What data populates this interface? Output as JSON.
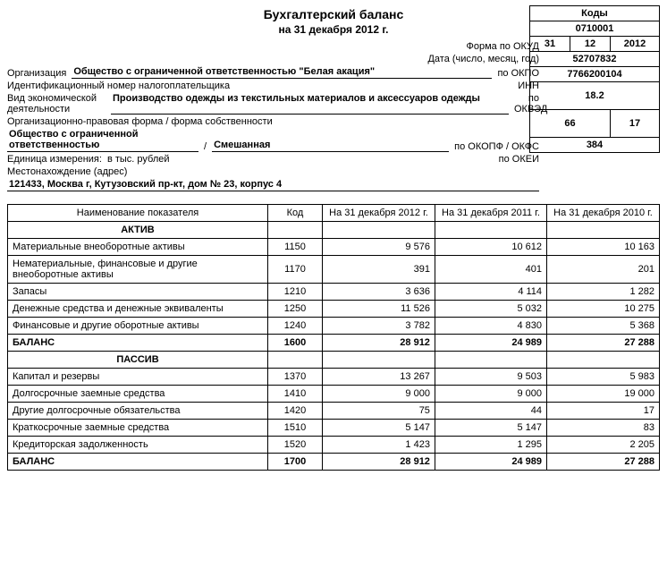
{
  "title": "Бухгалтерский баланс",
  "subtitle": "на 31 декабря 2012 г.",
  "codes_header": "Коды",
  "form_label": "Форма по ОКУД",
  "form_code": "0710001",
  "date_label": "Дата (число, месяц, год)",
  "date_day": "31",
  "date_month": "12",
  "date_year": "2012",
  "org_label": "Организация",
  "org_value": "Общество с ограниченной ответственностью \"Белая акация\"",
  "org_code_label": "по ОКПО",
  "org_code": "52707832",
  "inn_label": "Идентификационный номер налогоплательщика",
  "inn_code_label": "ИНН",
  "inn_code": "7766200104",
  "activity_label": "Вид экономической деятельности",
  "activity_value": "Производство одежды из текстильных материалов и аксессуаров одежды",
  "activity_code_label": "по ОКВЭД",
  "activity_code": "18.2",
  "legal_label": "Организационно-правовая форма / форма собственности",
  "legal_value1": "Общество с ограниченной ответственностью",
  "legal_value2": "Смешанная",
  "legal_code_label": "по ОКОПФ / ОКФС",
  "legal_code1": "66",
  "legal_code2": "17",
  "unit_label": "Единица измерения:",
  "unit_value": "в тыс. рублей",
  "unit_code_label": "по ОКЕИ",
  "unit_code": "384",
  "addr_label": "Местонахождение (адрес)",
  "addr_value": "121433, Москва г, Кутузовский пр-кт, дом № 23, корпус 4",
  "table": {
    "headers": [
      "Наименование показателя",
      "Код",
      "На 31 декабря 2012 г.",
      "На 31 декабря 2011 г.",
      "На 31 декабря 2010 г."
    ],
    "section_aktiv": "АКТИВ",
    "section_passiv": "ПАССИВ",
    "rows_aktiv": [
      {
        "name": "Материальные внеоборотные активы",
        "code": "1150",
        "v": [
          "9 576",
          "10 612",
          "10 163"
        ]
      },
      {
        "name": "Нематериальные, финансовые и другие внеоборотные активы",
        "code": "1170",
        "v": [
          "391",
          "401",
          "201"
        ]
      },
      {
        "name": "Запасы",
        "code": "1210",
        "v": [
          "3 636",
          "4 114",
          "1 282"
        ]
      },
      {
        "name": "Денежные средства и денежные эквиваленты",
        "code": "1250",
        "v": [
          "11 526",
          "5 032",
          "10 275"
        ]
      },
      {
        "name": "Финансовые и другие оборотные активы",
        "code": "1240",
        "v": [
          "3 782",
          "4 830",
          "5 368"
        ]
      }
    ],
    "balance_aktiv": {
      "name": "БАЛАНС",
      "code": "1600",
      "v": [
        "28 912",
        "24 989",
        "27 288"
      ]
    },
    "rows_passiv": [
      {
        "name": "Капитал и резервы",
        "code": "1370",
        "v": [
          "13 267",
          "9 503",
          "5 983"
        ]
      },
      {
        "name": "Долгосрочные заемные средства",
        "code": "1410",
        "v": [
          "9 000",
          "9 000",
          "19 000"
        ]
      },
      {
        "name": "Другие долгосрочные обязательства",
        "code": "1420",
        "v": [
          "75",
          "44",
          "17"
        ]
      },
      {
        "name": "Краткосрочные заемные средства",
        "code": "1510",
        "v": [
          "5 147",
          "5 147",
          "83"
        ]
      },
      {
        "name": "Кредиторская задолженность",
        "code": "1520",
        "v": [
          "1 423",
          "1 295",
          "2 205"
        ]
      }
    ],
    "balance_passiv": {
      "name": "БАЛАНС",
      "code": "1700",
      "v": [
        "28 912",
        "24 989",
        "27 288"
      ]
    }
  }
}
